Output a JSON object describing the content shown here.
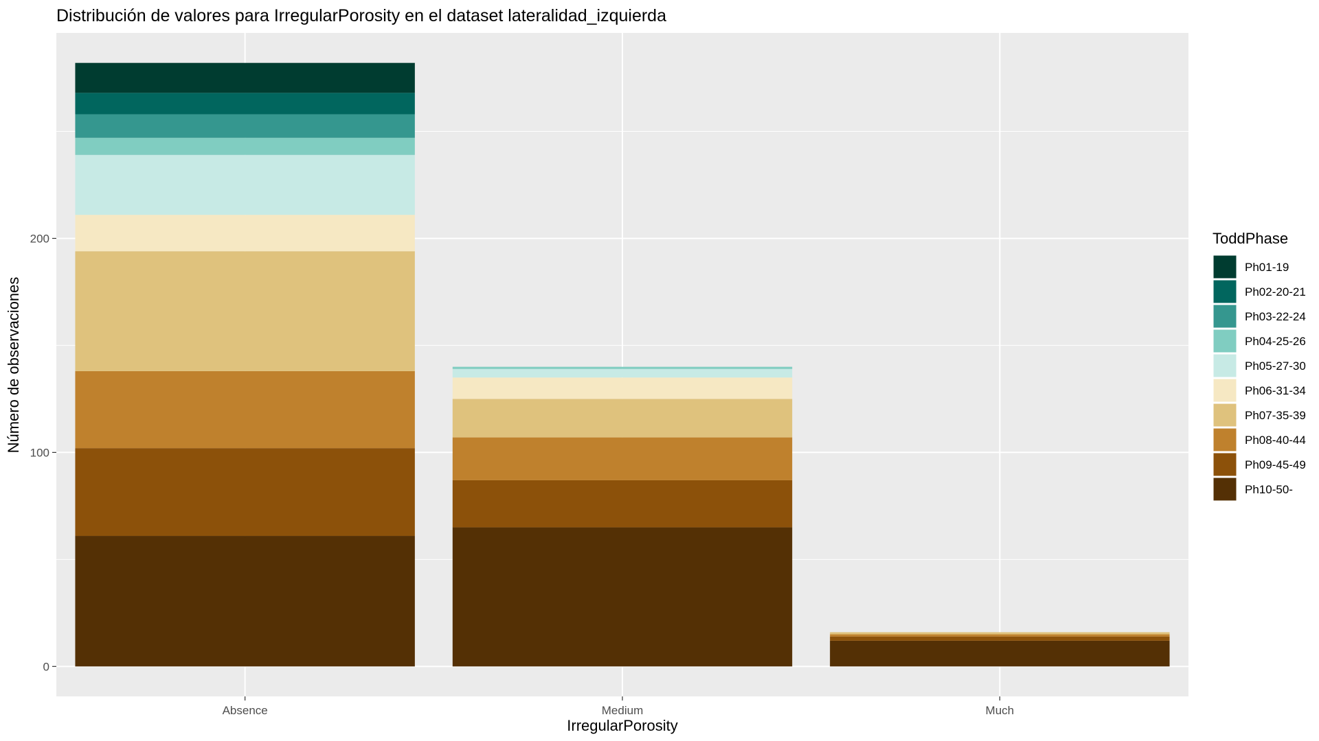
{
  "chart_data": {
    "type": "bar",
    "stacked": true,
    "title": "Distribución de valores para IrregularPorosity en el dataset lateralidad_izquierda",
    "xlabel": "IrregularPorosity",
    "ylabel": "Número de observaciones",
    "categories": [
      "Absence",
      "Medium",
      "Much"
    ],
    "y_ticks": [
      0,
      100,
      200
    ],
    "ylim": [
      -14,
      296
    ],
    "grid": true,
    "legend": {
      "title": "ToddPhase",
      "position": "right"
    },
    "series": [
      {
        "name": "Ph10-50-",
        "color": "#543005",
        "values": [
          61,
          65,
          12
        ]
      },
      {
        "name": "Ph09-45-49",
        "color": "#8C510A",
        "values": [
          41,
          22,
          2
        ]
      },
      {
        "name": "Ph08-40-44",
        "color": "#BF812D",
        "values": [
          36,
          20,
          1
        ]
      },
      {
        "name": "Ph07-35-39",
        "color": "#DFC27D",
        "values": [
          56,
          18,
          1
        ]
      },
      {
        "name": "Ph06-31-34",
        "color": "#F6E8C3",
        "values": [
          17,
          10,
          0
        ]
      },
      {
        "name": "Ph05-27-30",
        "color": "#C7EAE5",
        "values": [
          28,
          4,
          0
        ]
      },
      {
        "name": "Ph04-25-26",
        "color": "#80CDC1",
        "values": [
          8,
          1,
          0
        ]
      },
      {
        "name": "Ph03-22-24",
        "color": "#35978F",
        "values": [
          11,
          0,
          0
        ]
      },
      {
        "name": "Ph02-20-21",
        "color": "#01665E",
        "values": [
          10,
          0,
          0
        ]
      },
      {
        "name": "Ph01-19",
        "color": "#003C30",
        "values": [
          14,
          0,
          0
        ]
      }
    ]
  }
}
